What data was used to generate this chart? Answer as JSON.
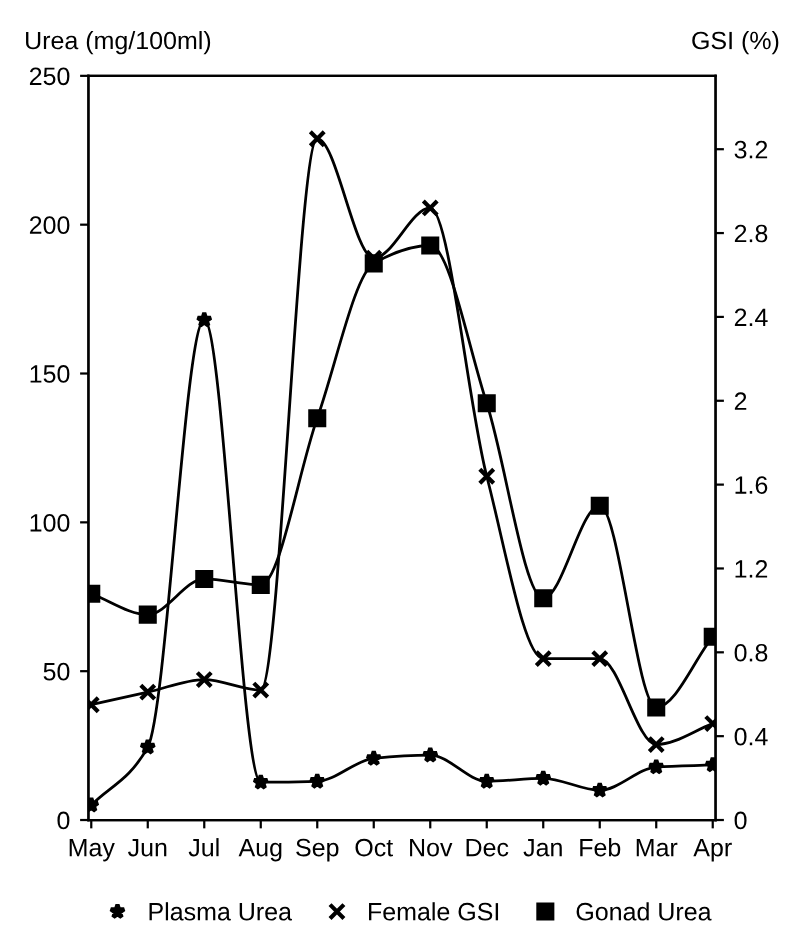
{
  "chart_data": {
    "type": "line",
    "ylabel": "Urea (mg/100ml)",
    "y2label": "GSI (%)",
    "categories": [
      "May",
      "Jun",
      "Jul",
      "Aug",
      "Sep",
      "Oct",
      "Nov",
      "Dec",
      "Jan",
      "Feb",
      "Mar",
      "Apr"
    ],
    "ylim": [
      0,
      250
    ],
    "yticks": [
      0,
      50,
      100,
      150,
      200,
      250
    ],
    "y2lim": [
      0,
      3.55
    ],
    "y2ticks": [
      0,
      0.4,
      0.8,
      1.2,
      1.6,
      2,
      2.4,
      2.8,
      3.2
    ],
    "grid": false,
    "legend": "bottom",
    "line_style": "solid",
    "series": [
      {
        "name": "Plasma Urea",
        "color": "#000000",
        "marker": "star",
        "values": [
          5,
          24.5,
          168,
          12.7,
          13,
          20.7,
          21.8,
          13,
          14,
          10,
          17.8,
          18.5
        ]
      },
      {
        "name": "Female GSI",
        "color": "#000000",
        "marker": "cross",
        "axis": "y2",
        "values": [
          0.55,
          0.61,
          0.67,
          0.62,
          3.25,
          2.68,
          2.92,
          1.64,
          0.77,
          0.77,
          0.36,
          0.46
        ]
      },
      {
        "name": "Gonad Urea",
        "color": "#000000",
        "marker": "square",
        "values": [
          76,
          69,
          81,
          79,
          135,
          187,
          193,
          140,
          74.5,
          105.6,
          37.8,
          61.6
        ]
      }
    ]
  }
}
